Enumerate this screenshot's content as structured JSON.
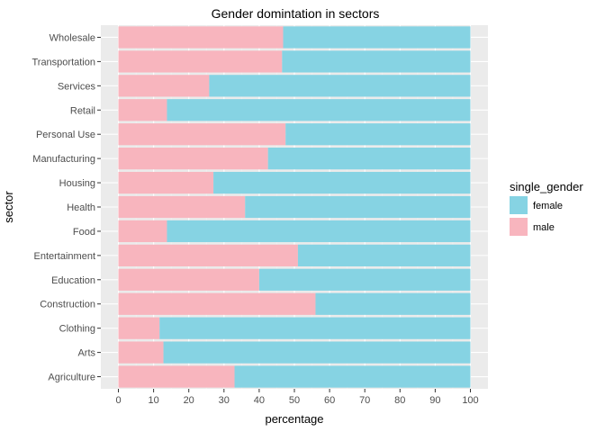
{
  "chart_data": {
    "type": "bar",
    "orientation": "horizontal",
    "stacked": true,
    "title": "Gender domintation in sectors",
    "xlabel": "percentage",
    "ylabel": "sector",
    "xlim": [
      0,
      100
    ],
    "xticks": [
      0,
      10,
      20,
      30,
      40,
      50,
      60,
      70,
      80,
      90,
      100
    ],
    "grid": true,
    "legend_position": "right",
    "legend_title": "single_gender",
    "categories": [
      "Wholesale",
      "Transportation",
      "Services",
      "Retail",
      "Personal Use",
      "Manufacturing",
      "Housing",
      "Health",
      "Food",
      "Entertainment",
      "Education",
      "Construction",
      "Clothing",
      "Arts",
      "Agriculture"
    ],
    "series": [
      {
        "name": "male",
        "color": "#F8B5BE",
        "values": [
          46.8,
          46.5,
          25.8,
          13.8,
          47.5,
          42.5,
          27.0,
          36.0,
          13.8,
          51.0,
          40.0,
          56.0,
          11.7,
          12.8,
          33.0
        ]
      },
      {
        "name": "female",
        "color": "#86D3E3",
        "values": [
          53.2,
          53.5,
          74.2,
          86.2,
          52.5,
          57.5,
          73.0,
          64.0,
          86.2,
          49.0,
          60.0,
          44.0,
          88.3,
          87.2,
          67.0
        ]
      }
    ],
    "legend_order": [
      "female",
      "male"
    ]
  },
  "colors": {
    "panel_background": "#EBEBEB",
    "grid_major": "#FFFFFF",
    "grid_minor": "#F2F2F2",
    "tick": "#333333"
  }
}
